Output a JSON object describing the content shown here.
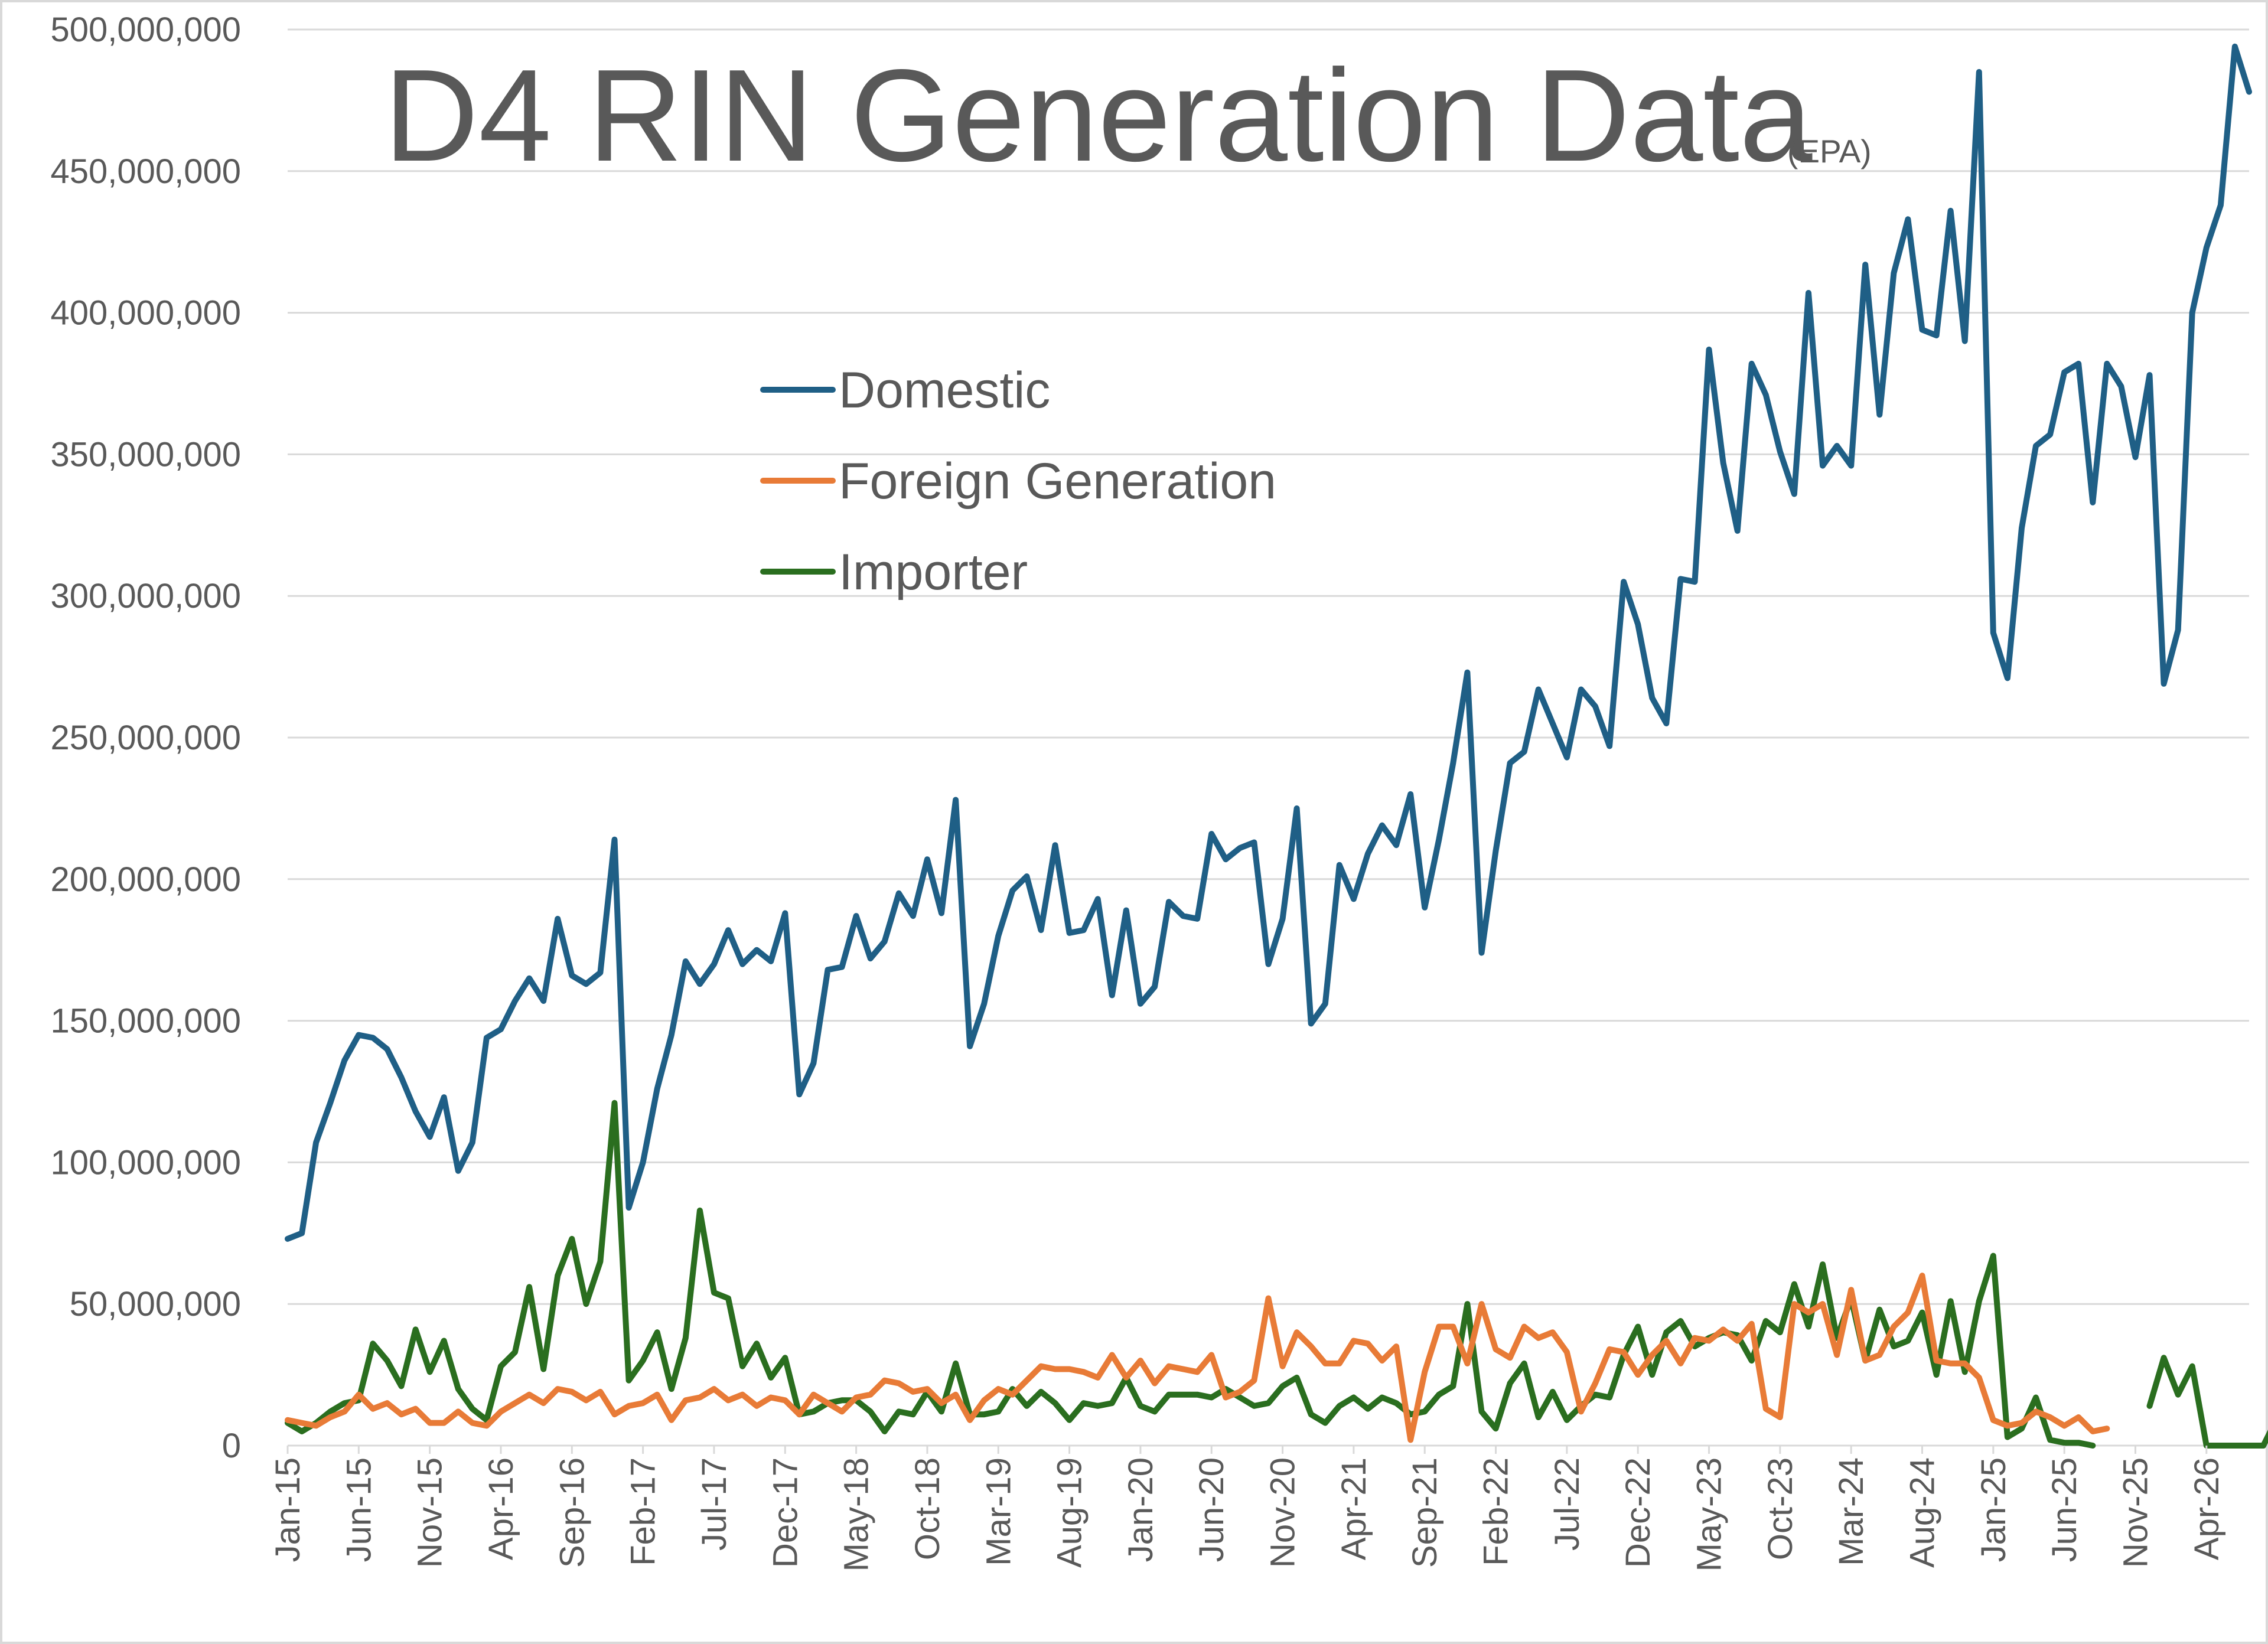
{
  "chart_data": {
    "type": "line",
    "title": "D4 RIN Generation Data",
    "subtitle": "(EPA)",
    "xlabel": "",
    "ylabel": "",
    "ylim": [
      0,
      500000000
    ],
    "y_ticks": [
      "0",
      "50,000,000",
      "100,000,000",
      "150,000,000",
      "200,000,000",
      "250,000,000",
      "300,000,000",
      "350,000,000",
      "400,000,000",
      "450,000,000",
      "500,000,000"
    ],
    "x_start": "2015-01",
    "x_tick_labels": [
      "Jan-15",
      "Jun-15",
      "Nov-15",
      "Apr-16",
      "Sep-16",
      "Feb-17",
      "Jul-17",
      "Dec-17",
      "May-18",
      "Oct-18",
      "Mar-19",
      "Aug-19",
      "Jan-20",
      "Jun-20",
      "Nov-20",
      "Apr-21",
      "Sep-21",
      "Feb-22",
      "Jul-22",
      "Dec-22",
      "May-23",
      "Oct-23",
      "Mar-24",
      "Aug-24",
      "Jan-25",
      "Jun-25",
      "Nov-25",
      "Apr-26"
    ],
    "grid": true,
    "legend_position": "upper-left-center",
    "series": [
      {
        "name": "Domestic",
        "color": "#1f5f86",
        "values": [
          73000000,
          75000000,
          107000000,
          121000000,
          136000000,
          145000000,
          144000000,
          140000000,
          130000000,
          118000000,
          109000000,
          123000000,
          97000000,
          107000000,
          144000000,
          147000000,
          157000000,
          165000000,
          157000000,
          186000000,
          166000000,
          163000000,
          167000000,
          214000000,
          84000000,
          100000000,
          126000000,
          145000000,
          171000000,
          163000000,
          170000000,
          182000000,
          170000000,
          175000000,
          171000000,
          188000000,
          124000000,
          135000000,
          168000000,
          169000000,
          187000000,
          172000000,
          178000000,
          195000000,
          187000000,
          207000000,
          188000000,
          228000000,
          141000000,
          156000000,
          180000000,
          196000000,
          201000000,
          182000000,
          212000000,
          181000000,
          182000000,
          193000000,
          159000000,
          189000000,
          156000000,
          162000000,
          192000000,
          187000000,
          186000000,
          216000000,
          207000000,
          211000000,
          213000000,
          170000000,
          186000000,
          225000000,
          149000000,
          156000000,
          205000000,
          193000000,
          209000000,
          219000000,
          212000000,
          230000000,
          190000000,
          214000000,
          241000000,
          273000000,
          174000000,
          210000000,
          241000000,
          245000000,
          267000000,
          255000000,
          243000000,
          267000000,
          261000000,
          247000000,
          305000000,
          290000000,
          264000000,
          255000000,
          306000000,
          305000000,
          387000000,
          347000000,
          323000000,
          382000000,
          371000000,
          351000000,
          336000000,
          407000000,
          346000000,
          353000000,
          346000000,
          417000000,
          364000000,
          414000000,
          433000000,
          394000000,
          392000000,
          436000000,
          390000000,
          485000000,
          287000000,
          271000000,
          324000000,
          353000000,
          357000000,
          379000000,
          382000000,
          333000000,
          382000000,
          374000000,
          349000000,
          378000000,
          269000000,
          288000000,
          400000000,
          423000000,
          438000000,
          494000000,
          478000000
        ]
      },
      {
        "name": "Foreign Generation",
        "color": "#e87b37",
        "values": [
          9000000,
          8000000,
          7000000,
          10000000,
          12000000,
          18000000,
          13000000,
          15000000,
          11000000,
          13000000,
          8000000,
          8000000,
          12000000,
          8000000,
          7000000,
          12000000,
          15000000,
          18000000,
          15000000,
          20000000,
          19000000,
          16000000,
          19000000,
          11000000,
          14000000,
          15000000,
          18000000,
          9000000,
          16000000,
          17000000,
          20000000,
          16000000,
          18000000,
          14000000,
          17000000,
          16000000,
          11000000,
          18000000,
          15000000,
          12000000,
          17000000,
          18000000,
          23000000,
          22000000,
          19000000,
          20000000,
          15000000,
          18000000,
          9000000,
          16000000,
          20000000,
          18000000,
          23000000,
          28000000,
          27000000,
          27000000,
          26000000,
          24000000,
          32000000,
          24000000,
          30000000,
          22000000,
          28000000,
          27000000,
          26000000,
          32000000,
          17000000,
          19000000,
          23000000,
          52000000,
          28000000,
          40000000,
          35000000,
          29000000,
          29000000,
          37000000,
          36000000,
          30000000,
          35000000,
          2000000,
          26000000,
          42000000,
          42000000,
          29000000,
          50000000,
          34000000,
          31000000,
          42000000,
          38000000,
          40000000,
          33000000,
          12000000,
          22000000,
          34000000,
          33000000,
          25000000,
          32000000,
          37000000,
          29000000,
          38000000,
          37000000,
          41000000,
          37000000,
          43000000,
          13000000,
          10000000,
          50000000,
          47000000,
          50000000,
          32000000,
          55000000,
          30000000,
          32000000,
          42000000,
          47000000,
          60000000,
          30000000,
          29000000,
          29000000,
          24000000,
          9000000,
          7000000,
          8000000,
          12000000,
          10000000,
          7000000,
          10000000,
          5000000,
          6000000,
          null,
          null,
          null,
          null,
          null,
          null,
          null,
          null,
          null,
          null
        ]
      },
      {
        "name": "Importer",
        "color": "#2a6e1f",
        "values": [
          8000000,
          5000000,
          8000000,
          12000000,
          15000000,
          16000000,
          36000000,
          30000000,
          21000000,
          41000000,
          26000000,
          37000000,
          20000000,
          13000000,
          9000000,
          28000000,
          33000000,
          56000000,
          27000000,
          60000000,
          73000000,
          50000000,
          65000000,
          121000000,
          23000000,
          30000000,
          40000000,
          20000000,
          38000000,
          83000000,
          54000000,
          52000000,
          28000000,
          36000000,
          24000000,
          31000000,
          11000000,
          12000000,
          15000000,
          16000000,
          16000000,
          12000000,
          5000000,
          12000000,
          11000000,
          19000000,
          12000000,
          29000000,
          11000000,
          11000000,
          12000000,
          20000000,
          14000000,
          19000000,
          15000000,
          9000000,
          15000000,
          14000000,
          15000000,
          24000000,
          14000000,
          12000000,
          18000000,
          18000000,
          18000000,
          17000000,
          20000000,
          17000000,
          14000000,
          15000000,
          21000000,
          24000000,
          11000000,
          8000000,
          14000000,
          17000000,
          13000000,
          17000000,
          15000000,
          11000000,
          12000000,
          18000000,
          21000000,
          50000000,
          12000000,
          6000000,
          22000000,
          29000000,
          10000000,
          19000000,
          9000000,
          14000000,
          18000000,
          17000000,
          32000000,
          42000000,
          25000000,
          40000000,
          44000000,
          35000000,
          38000000,
          40000000,
          39000000,
          30000000,
          44000000,
          40000000,
          57000000,
          42000000,
          64000000,
          38000000,
          52000000,
          30000000,
          48000000,
          35000000,
          37000000,
          47000000,
          25000000,
          51000000,
          26000000,
          51000000,
          67000000,
          3000000,
          6000000,
          17000000,
          2000000,
          1000000,
          1000000,
          0,
          null,
          null,
          null,
          14000000,
          31000000,
          18000000,
          28000000,
          0,
          0,
          0,
          0,
          0,
          10000000,
          18000000,
          7000000
        ]
      }
    ]
  }
}
